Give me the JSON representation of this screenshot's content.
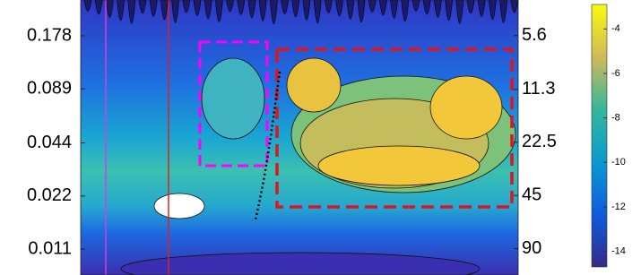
{
  "chart_data": {
    "type": "contour",
    "ylim": [
      0.00785,
      0.284
    ],
    "yticks": [
      0.178,
      0.089,
      0.044,
      0.022,
      0.011
    ],
    "ylog": true,
    "y2lim": [
      3.52,
      127
    ],
    "y2ticks": [
      5.6,
      11.3,
      22.5,
      45,
      90
    ],
    "y2log": true,
    "y2reverse": true,
    "colorbar": {
      "clim": [
        -14.7,
        -2.9
      ],
      "ticks": [
        -4,
        -6,
        -8,
        -10,
        -12,
        -14
      ]
    }
  }
}
